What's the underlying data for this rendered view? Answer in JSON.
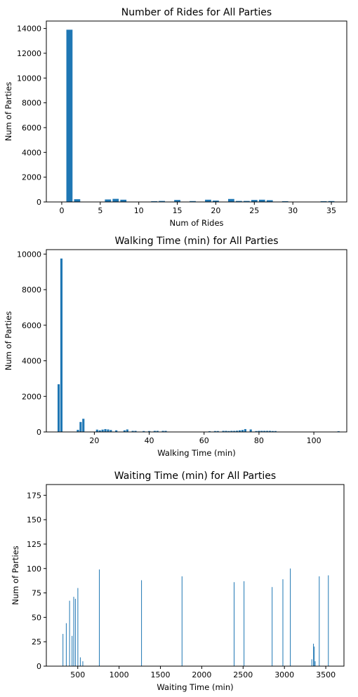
{
  "colors": {
    "bar": "#1f77b4",
    "axis": "#000000",
    "background": "#ffffff"
  },
  "chart_data": [
    {
      "type": "bar",
      "title": "Number of Rides for All Parties",
      "xlabel": "Num of Rides",
      "ylabel": "Num of Parties",
      "xlim": [
        -2,
        37
      ],
      "ylim": [
        0,
        14600
      ],
      "xticks": [
        0,
        5,
        10,
        15,
        20,
        25,
        30,
        35
      ],
      "yticks": [
        0,
        2000,
        4000,
        6000,
        8000,
        10000,
        12000,
        14000
      ],
      "bar_width": 0.8,
      "x": [
        1,
        2,
        6,
        7,
        8,
        12,
        13,
        15,
        17,
        19,
        20,
        22,
        23,
        24,
        25,
        26,
        27,
        29,
        34,
        35
      ],
      "values": [
        13900,
        220,
        200,
        250,
        180,
        60,
        80,
        160,
        70,
        180,
        110,
        240,
        80,
        80,
        160,
        180,
        140,
        60,
        60,
        70
      ]
    },
    {
      "type": "bar",
      "title": "Walking Time (min) for All Parties",
      "xlabel": "Walking Time (min)",
      "ylabel": "Num of Parties",
      "xlim": [
        2.5,
        112
      ],
      "ylim": [
        0,
        10250
      ],
      "xticks": [
        20,
        40,
        60,
        80,
        100
      ],
      "yticks": [
        0,
        2000,
        4000,
        6000,
        8000,
        10000
      ],
      "bar_width": 0.8,
      "x": [
        7,
        8,
        14,
        15,
        16,
        21,
        22,
        23,
        24,
        25,
        26,
        28,
        31,
        32,
        34,
        35,
        38,
        40,
        42,
        43,
        45,
        46,
        62,
        64,
        65,
        67,
        68,
        69,
        70,
        71,
        72,
        73,
        74,
        75,
        77,
        79,
        80,
        81,
        82,
        83,
        84,
        85,
        86,
        109
      ],
      "values": [
        2680,
        9750,
        120,
        560,
        740,
        130,
        90,
        130,
        160,
        140,
        110,
        90,
        90,
        140,
        60,
        60,
        50,
        50,
        60,
        60,
        60,
        60,
        40,
        50,
        50,
        60,
        60,
        50,
        60,
        60,
        70,
        90,
        110,
        160,
        140,
        50,
        60,
        60,
        60,
        60,
        60,
        50,
        50,
        40
      ]
    },
    {
      "type": "bar",
      "title": "Waiting Time (min) for All Parties",
      "xlabel": "Waiting Time (min)",
      "ylabel": "Num of Parties",
      "xlim": [
        120,
        3720
      ],
      "ylim": [
        0,
        186
      ],
      "xticks": [
        500,
        1000,
        1500,
        2000,
        2500,
        3000,
        3500
      ],
      "yticks": [
        0,
        25,
        50,
        75,
        100,
        125,
        150,
        175
      ],
      "bar_width": 6,
      "x": [
        320,
        360,
        400,
        430,
        450,
        470,
        500,
        530,
        560,
        760,
        1270,
        1760,
        2390,
        2510,
        2850,
        2980,
        3070,
        3330,
        3350,
        3360,
        3370,
        3420,
        3530
      ],
      "values": [
        33,
        44,
        67,
        31,
        71,
        69,
        80,
        9,
        5,
        99,
        88,
        92,
        86,
        87,
        81,
        89,
        100,
        7,
        23,
        20,
        5,
        92,
        93
      ]
    }
  ]
}
